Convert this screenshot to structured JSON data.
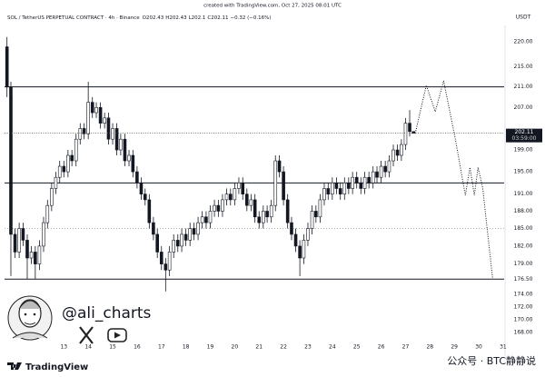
{
  "header": {
    "created": "created with TradingView.com, Oct 27, 2025 08:01 UTC",
    "symbol": "SOL / TetherUS PERPETUAL CONTRACT · 4h · Binance",
    "ohlc": [
      {
        "label": "O",
        "value": 202.43
      },
      {
        "label": "H",
        "value": 202.43
      },
      {
        "label": "L",
        "value": 202.1
      },
      {
        "label": "C",
        "value": 202.11
      }
    ],
    "change": "−0.32 (−0.16%)"
  },
  "chart_data": {
    "type": "candlestick",
    "currency": "USDT",
    "scale": "log",
    "up_color": "#ffffff",
    "down_color": "#131722",
    "x": [
      10.67,
      10.83,
      11,
      11.17,
      11.33,
      11.5,
      11.67,
      11.83,
      12,
      12.17,
      12.33,
      12.5,
      12.67,
      12.83,
      13,
      13.17,
      13.33,
      13.5,
      13.67,
      13.83,
      14,
      14.17,
      14.33,
      14.5,
      14.67,
      14.83,
      15,
      15.17,
      15.33,
      15.5,
      15.67,
      15.83,
      16,
      16.17,
      16.33,
      16.5,
      16.67,
      16.83,
      17,
      17.17,
      17.33,
      17.5,
      17.67,
      17.83,
      18,
      18.17,
      18.33,
      18.5,
      18.67,
      18.83,
      19,
      19.17,
      19.33,
      19.5,
      19.67,
      19.83,
      20,
      20.17,
      20.33,
      20.5,
      20.67,
      20.83,
      21,
      21.17,
      21.33,
      21.5,
      21.67,
      21.83,
      22,
      22.17,
      22.33,
      22.5,
      22.67,
      22.83,
      23,
      23.17,
      23.33,
      23.5,
      23.67,
      23.83,
      24,
      24.17,
      24.33,
      24.5,
      24.67,
      24.83,
      25,
      25.17,
      25.33,
      25.5,
      25.67,
      25.83,
      26,
      26.17,
      26.33,
      26.5,
      26.67,
      26.83,
      27,
      27.17,
      27.33
    ],
    "open": [
      219,
      211,
      184,
      181,
      185,
      183,
      180,
      181,
      179,
      182,
      186,
      189,
      192,
      194,
      196,
      195,
      198,
      197,
      201,
      203,
      202,
      208,
      206,
      207,
      204,
      205,
      201,
      203,
      199,
      201,
      197,
      198,
      195,
      193,
      191,
      190,
      186,
      184,
      181,
      179,
      178,
      181,
      183,
      182,
      184,
      183,
      185,
      184,
      186,
      187,
      186,
      188,
      189,
      188,
      190,
      191,
      190,
      192,
      193,
      191,
      189,
      190,
      187,
      186,
      188,
      187,
      189,
      197,
      195,
      190,
      186,
      184,
      182,
      180,
      183,
      185,
      188,
      187,
      190,
      192,
      191,
      193,
      192,
      191,
      193,
      192,
      194,
      193,
      192,
      194,
      193,
      195,
      194,
      196,
      195,
      197,
      199,
      198,
      200,
      204,
      202.43
    ],
    "high": [
      221,
      212,
      185,
      186,
      186,
      184,
      182,
      182,
      183,
      187,
      190,
      193,
      195,
      197,
      197,
      199,
      199,
      202,
      204,
      204,
      212,
      209,
      208,
      208,
      206,
      206,
      204,
      204,
      202,
      202,
      199,
      199,
      196,
      194,
      192,
      191,
      187,
      185,
      182,
      180,
      182,
      184,
      184,
      185,
      185,
      186,
      186,
      187,
      188,
      188,
      189,
      190,
      190,
      191,
      192,
      192,
      193,
      194,
      194,
      192,
      191,
      191,
      188,
      189,
      189,
      190,
      198,
      198,
      196,
      191,
      187,
      185,
      183,
      184,
      186,
      189,
      189,
      191,
      193,
      193,
      194,
      194,
      193,
      194,
      194,
      195,
      195,
      194,
      195,
      195,
      196,
      196,
      197,
      197,
      198,
      200,
      200,
      201,
      205,
      206.5,
      202.43
    ],
    "low": [
      209,
      177,
      180,
      180,
      182,
      176.5,
      179,
      176.5,
      178,
      181,
      185,
      188,
      191,
      193,
      194,
      194,
      196,
      196,
      200,
      201,
      201,
      205,
      205,
      203,
      203,
      200,
      200,
      198,
      198,
      196,
      196,
      194,
      192,
      190,
      189,
      185,
      183,
      180,
      178,
      174.5,
      177,
      180,
      181,
      181,
      182,
      182,
      183,
      183,
      185,
      185,
      185,
      187,
      187,
      187,
      189,
      189,
      189,
      191,
      190,
      188,
      188,
      186,
      185,
      185,
      186,
      186,
      188,
      194,
      189,
      185,
      183,
      181,
      177,
      179,
      182,
      184,
      186,
      186,
      189,
      190,
      190,
      191,
      190,
      190,
      191,
      191,
      192,
      191,
      191,
      192,
      192,
      193,
      193,
      194,
      194,
      196,
      197,
      197,
      199,
      201.5,
      202.1
    ],
    "close": [
      211,
      184,
      181,
      185,
      183,
      180,
      181,
      179,
      182,
      186,
      189,
      192,
      194,
      196,
      195,
      198,
      197,
      201,
      203,
      202,
      208,
      206,
      207,
      204,
      205,
      201,
      203,
      199,
      201,
      197,
      198,
      195,
      193,
      191,
      190,
      186,
      184,
      181,
      179,
      178,
      181,
      183,
      182,
      184,
      183,
      185,
      184,
      186,
      187,
      186,
      188,
      189,
      188,
      190,
      191,
      190,
      192,
      193,
      191,
      189,
      190,
      187,
      186,
      188,
      187,
      189,
      197,
      195,
      190,
      186,
      184,
      182,
      180,
      183,
      185,
      188,
      187,
      190,
      192,
      191,
      193,
      192,
      191,
      193,
      192,
      194,
      193,
      192,
      194,
      193,
      195,
      194,
      196,
      195,
      197,
      199,
      198,
      200,
      204,
      202.43,
      202.11
    ],
    "countdown": "03:59:00",
    "horizontal_lines": [
      211,
      193,
      176.5
    ],
    "dotted_lines": [
      185
    ],
    "projection": {
      "x": [
        27.4,
        27.85,
        28.22,
        28.56,
        29.04,
        29.45,
        29.64,
        29.82,
        29.97,
        30.16,
        30.57
      ],
      "values": [
        202.11,
        211.3,
        206.2,
        212.2,
        201,
        190.8,
        195.8,
        190.8,
        195.8,
        192.1,
        176.5
      ]
    },
    "xlim": [
      10.57,
      31.04
    ],
    "xticks": [
      13,
      14,
      15,
      16,
      17,
      18,
      19,
      20,
      21,
      22,
      23,
      24,
      25,
      26,
      27,
      28,
      29,
      30,
      31
    ],
    "ylim": [
      165.3,
      224.9
    ],
    "yticks": [
      {
        "value": 220,
        "label": "220.00"
      },
      {
        "value": 215,
        "label": "215.00"
      },
      {
        "value": 211,
        "label": "211.00"
      },
      {
        "value": 207,
        "label": "207.00"
      },
      {
        "value": 199,
        "label": "199.00"
      },
      {
        "value": 195,
        "label": "195.00"
      },
      {
        "value": 191,
        "label": "191.00"
      },
      {
        "value": 188,
        "label": "188.00"
      },
      {
        "value": 185,
        "label": "185.00"
      },
      {
        "value": 182,
        "label": "182.00"
      },
      {
        "value": 179,
        "label": "179.00"
      },
      {
        "value": 176.5,
        "label": "176.50"
      },
      {
        "value": 174,
        "label": "174.00"
      },
      {
        "value": 172,
        "label": "172.00"
      },
      {
        "value": 170,
        "label": "170.00"
      },
      {
        "value": 168,
        "label": "168.00"
      }
    ]
  },
  "author": {
    "handle": "@ali_charts"
  },
  "brand": "TradingView",
  "watermark": "公众号 · BTC静静说"
}
